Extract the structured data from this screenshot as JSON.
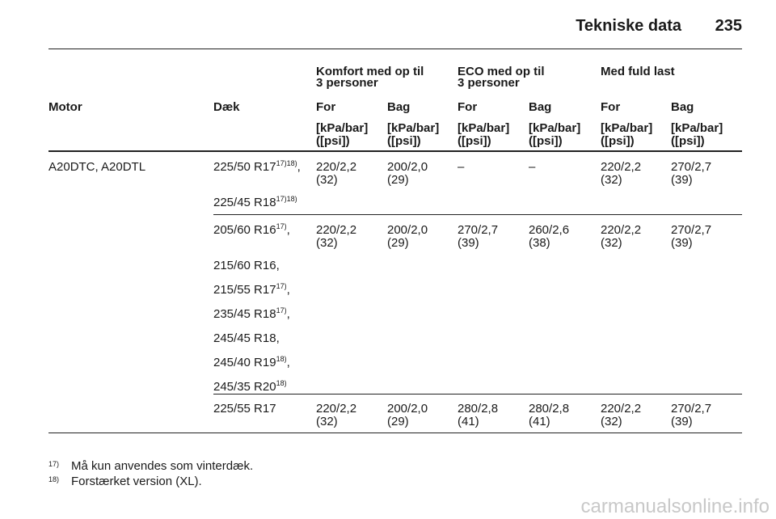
{
  "header": {
    "title": "Tekniske data",
    "page": "235"
  },
  "table": {
    "groups": [
      [
        "Komfort med op til",
        "3 personer"
      ],
      [
        "ECO med op til",
        "3 personer"
      ],
      [
        "Med fuld last"
      ]
    ],
    "columns": [
      "Motor",
      "Dæk",
      "For",
      "Bag",
      "For",
      "Bag",
      "For",
      "Bag"
    ],
    "units": [
      [
        "[kPa/bar]",
        "([psi])"
      ],
      [
        "[kPa/bar]",
        "([psi])"
      ],
      [
        "[kPa/bar]",
        "([psi])"
      ],
      [
        "[kPa/bar]",
        "([psi])"
      ],
      [
        "[kPa/bar]",
        "([psi])"
      ],
      [
        "[kPa/bar]",
        "([psi])"
      ]
    ],
    "motor": "A20DTC, A20DTL",
    "blocks": [
      {
        "tires": [
          {
            "text": "225/50 R17",
            "sup": "17)18)",
            "suffix": ","
          },
          {
            "text": "225/45 R18",
            "sup": "17)18)"
          }
        ],
        "values": [
          [
            "220/2,2",
            "(32)"
          ],
          [
            "200/2,0",
            "(29)"
          ],
          [
            "–"
          ],
          [
            "–"
          ],
          [
            "220/2,2",
            "(32)"
          ],
          [
            "270/2,7",
            "(39)"
          ]
        ]
      },
      {
        "tires": [
          {
            "text": "205/60 R16",
            "sup": "17)",
            "suffix": ","
          },
          {
            "text": "215/60 R16,"
          },
          {
            "text": "215/55 R17",
            "sup": "17)",
            "suffix": ","
          },
          {
            "text": "235/45 R18",
            "sup": "17)",
            "suffix": ","
          },
          {
            "text": "245/45 R18,"
          },
          {
            "text": "245/40 R19",
            "sup": "18)",
            "suffix": ","
          },
          {
            "text": "245/35 R20",
            "sup": "18)"
          }
        ],
        "values": [
          [
            "220/2,2",
            "(32)"
          ],
          [
            "200/2,0",
            "(29)"
          ],
          [
            "270/2,7",
            "(39)"
          ],
          [
            "260/2,6",
            "(38)"
          ],
          [
            "220/2,2",
            "(32)"
          ],
          [
            "270/2,7",
            "(39)"
          ]
        ]
      },
      {
        "tires": [
          {
            "text": "225/55 R17"
          }
        ],
        "values": [
          [
            "220/2,2",
            "(32)"
          ],
          [
            "200/2,0",
            "(29)"
          ],
          [
            "280/2,8",
            "(41)"
          ],
          [
            "280/2,8",
            "(41)"
          ],
          [
            "220/2,2",
            "(32)"
          ],
          [
            "270/2,7",
            "(39)"
          ]
        ]
      }
    ]
  },
  "footnotes": [
    {
      "mark": "17)",
      "text": "Må kun anvendes som vinterdæk."
    },
    {
      "mark": "18)",
      "text": "Forstærket version (XL)."
    }
  ],
  "watermark": "carmanualsonline.info"
}
